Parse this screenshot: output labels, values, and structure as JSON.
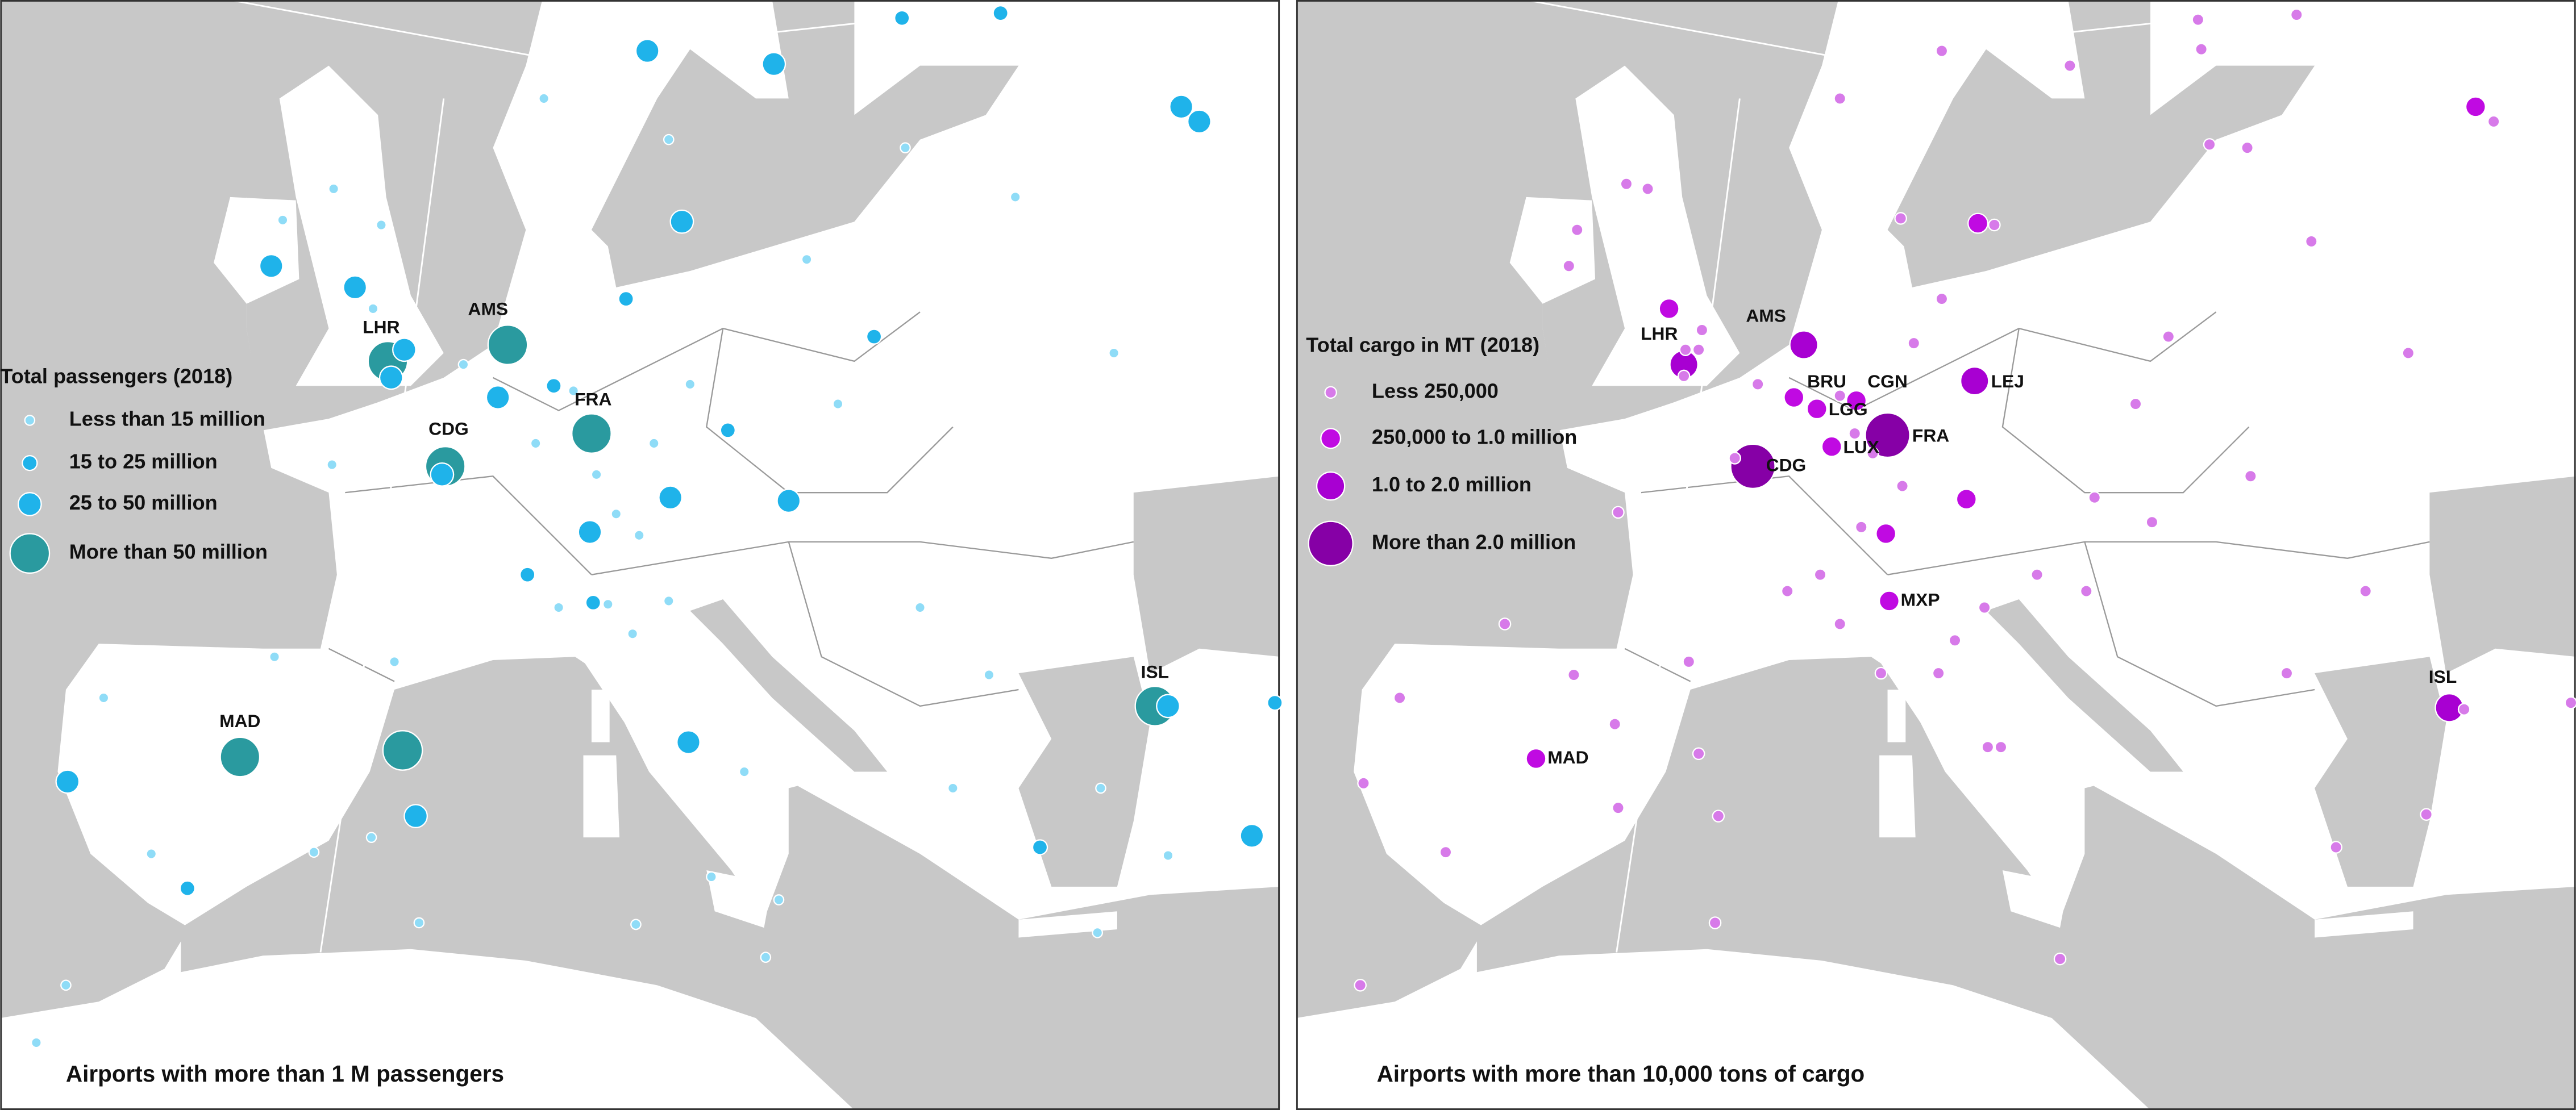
{
  "panels": [
    {
      "legend": {
        "title": "Total passengers (2018)",
        "items": [
          "Less than 15 million",
          "15 to 25 million",
          "25 to 50 million",
          "More than 50 million"
        ]
      },
      "labels": [
        "LHR",
        "AMS",
        "CDG",
        "FRA",
        "MAD",
        "ISL"
      ],
      "caption": "Airports with more than 1 M passengers"
    },
    {
      "legend": {
        "title": "Total cargo in MT (2018)",
        "items": [
          "Less 250,000",
          "250,000 to 1.0 million",
          "1.0 to 2.0 million",
          "More than 2.0 million"
        ]
      },
      "labels": [
        "LHR",
        "AMS",
        "BRU",
        "CGN",
        "LGG",
        "LUX",
        "FRA",
        "CDG",
        "LEJ",
        "MXP",
        "MAD",
        "ISL"
      ],
      "caption": "Airports with more than 10,000 tons of cargo"
    }
  ]
}
